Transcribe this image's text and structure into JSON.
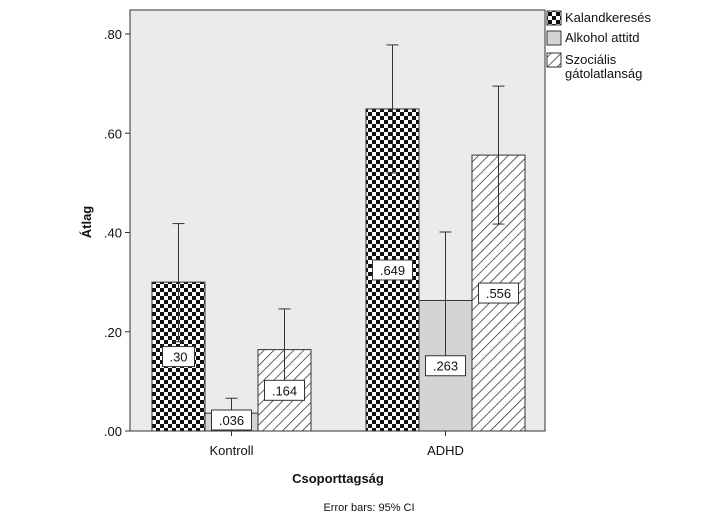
{
  "chart_data": {
    "type": "bar",
    "xlabel": "Csoporttagság",
    "ylabel": "Átlag",
    "ylim": [
      0,
      0.8
    ],
    "yticks": [
      ".00",
      ".20",
      ".40",
      ".60",
      ".80"
    ],
    "categories": [
      "Kontroll",
      "ADHD"
    ],
    "series": [
      {
        "name": "Kalandkeresés",
        "values": [
          0.3,
          0.649
        ],
        "labels": [
          ".30",
          ".649"
        ],
        "ci_low": [
          0.18,
          0.52
        ],
        "ci_high": [
          0.418,
          0.778
        ],
        "pattern": "checker"
      },
      {
        "name": "Alkohol attitd",
        "values": [
          0.036,
          0.263
        ],
        "labels": [
          ".036",
          ".263"
        ],
        "ci_low": [
          0.005,
          0.125
        ],
        "ci_high": [
          0.066,
          0.401
        ],
        "pattern": "solid-gray"
      },
      {
        "name": "Szociális gátolatlanság",
        "values": [
          0.164,
          0.556
        ],
        "labels": [
          ".164",
          ".556"
        ],
        "ci_low": [
          0.082,
          0.417
        ],
        "ci_high": [
          0.246,
          0.695
        ],
        "pattern": "hatch"
      }
    ],
    "legend": {
      "placement": "top-right",
      "entries": [
        {
          "lines": [
            "Kalandkeresés"
          ]
        },
        {
          "lines": [
            "Alkohol attitd"
          ]
        },
        {
          "lines": [
            "Szociális",
            "gátolatlanság"
          ]
        }
      ]
    },
    "footnote": "Error bars: 95% CI",
    "plot_background": "#ebebeb",
    "bar_fill_gray": "#d4d4d4"
  }
}
